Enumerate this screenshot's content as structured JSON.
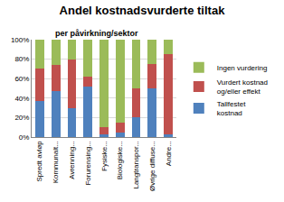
{
  "chart_data": {
    "type": "bar",
    "title": "Andel kostnadsvurderte tiltak",
    "subtitle": "per påvirkning/sektor",
    "categories": [
      "Spredt avløp",
      "Kommunalt...",
      "Avrenning...",
      "Forurensing...",
      "Fysiske...",
      "Biologiske...",
      "Langtranspor...",
      "Øvrige diffuse...",
      "Andre..."
    ],
    "series": [
      {
        "name": "Tallfestet kostnad",
        "color": "#4f81bd",
        "values": [
          37,
          47,
          30,
          52,
          3,
          5,
          20,
          50,
          3
        ]
      },
      {
        "name": "Vurdert kostnad og/eller effekt",
        "color": "#c0504d",
        "values": [
          33,
          27,
          50,
          10,
          7,
          10,
          30,
          25,
          82
        ]
      },
      {
        "name": "Ingen vurdering",
        "color": "#9bbb59",
        "values": [
          30,
          26,
          20,
          38,
          90,
          85,
          50,
          25,
          15
        ]
      }
    ],
    "stacked": true,
    "legend": "right",
    "grid": true,
    "ylim": [
      0,
      100
    ],
    "yticks": [
      {
        "value": 0,
        "label": "0%"
      },
      {
        "value": 20,
        "label": "20%"
      },
      {
        "value": 40,
        "label": "40%"
      },
      {
        "value": 60,
        "label": "60%"
      },
      {
        "value": 80,
        "label": "80%"
      },
      {
        "value": 100,
        "label": "100%"
      }
    ]
  }
}
